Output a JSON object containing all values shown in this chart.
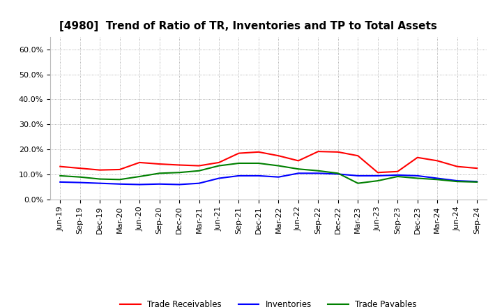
{
  "title": "[4980]  Trend of Ratio of TR, Inventories and TP to Total Assets",
  "x_labels": [
    "Jun-19",
    "Sep-19",
    "Dec-19",
    "Mar-20",
    "Jun-20",
    "Sep-20",
    "Dec-20",
    "Mar-21",
    "Jun-21",
    "Sep-21",
    "Dec-21",
    "Mar-22",
    "Jun-22",
    "Sep-22",
    "Dec-22",
    "Mar-23",
    "Jun-23",
    "Sep-23",
    "Dec-23",
    "Mar-24",
    "Jun-24",
    "Sep-24"
  ],
  "trade_receivables": [
    13.2,
    12.5,
    11.8,
    12.0,
    14.8,
    14.2,
    13.8,
    13.5,
    14.8,
    18.5,
    19.0,
    17.5,
    15.5,
    19.2,
    19.0,
    17.5,
    10.8,
    11.2,
    16.8,
    15.5,
    13.2,
    12.5
  ],
  "inventories": [
    7.0,
    6.8,
    6.5,
    6.2,
    6.0,
    6.2,
    6.0,
    6.5,
    8.5,
    9.5,
    9.5,
    9.0,
    10.5,
    10.5,
    10.2,
    9.5,
    9.5,
    9.8,
    9.5,
    8.5,
    7.5,
    7.2
  ],
  "trade_payables": [
    9.5,
    9.0,
    8.2,
    8.0,
    9.2,
    10.5,
    10.8,
    11.5,
    13.5,
    14.5,
    14.5,
    13.5,
    12.2,
    11.5,
    10.5,
    6.5,
    7.5,
    9.2,
    8.5,
    8.0,
    7.2,
    7.0
  ],
  "ylim": [
    0,
    65
  ],
  "line_colors": {
    "trade_receivables": "#FF0000",
    "inventories": "#0000FF",
    "trade_payables": "#008000"
  },
  "line_width": 1.5,
  "legend_labels": [
    "Trade Receivables",
    "Inventories",
    "Trade Payables"
  ],
  "bg_color": "#FFFFFF",
  "plot_bg_color": "#FFFFFF",
  "grid_color": "#999999",
  "title_fontsize": 11,
  "tick_fontsize": 8,
  "legend_fontsize": 8.5
}
